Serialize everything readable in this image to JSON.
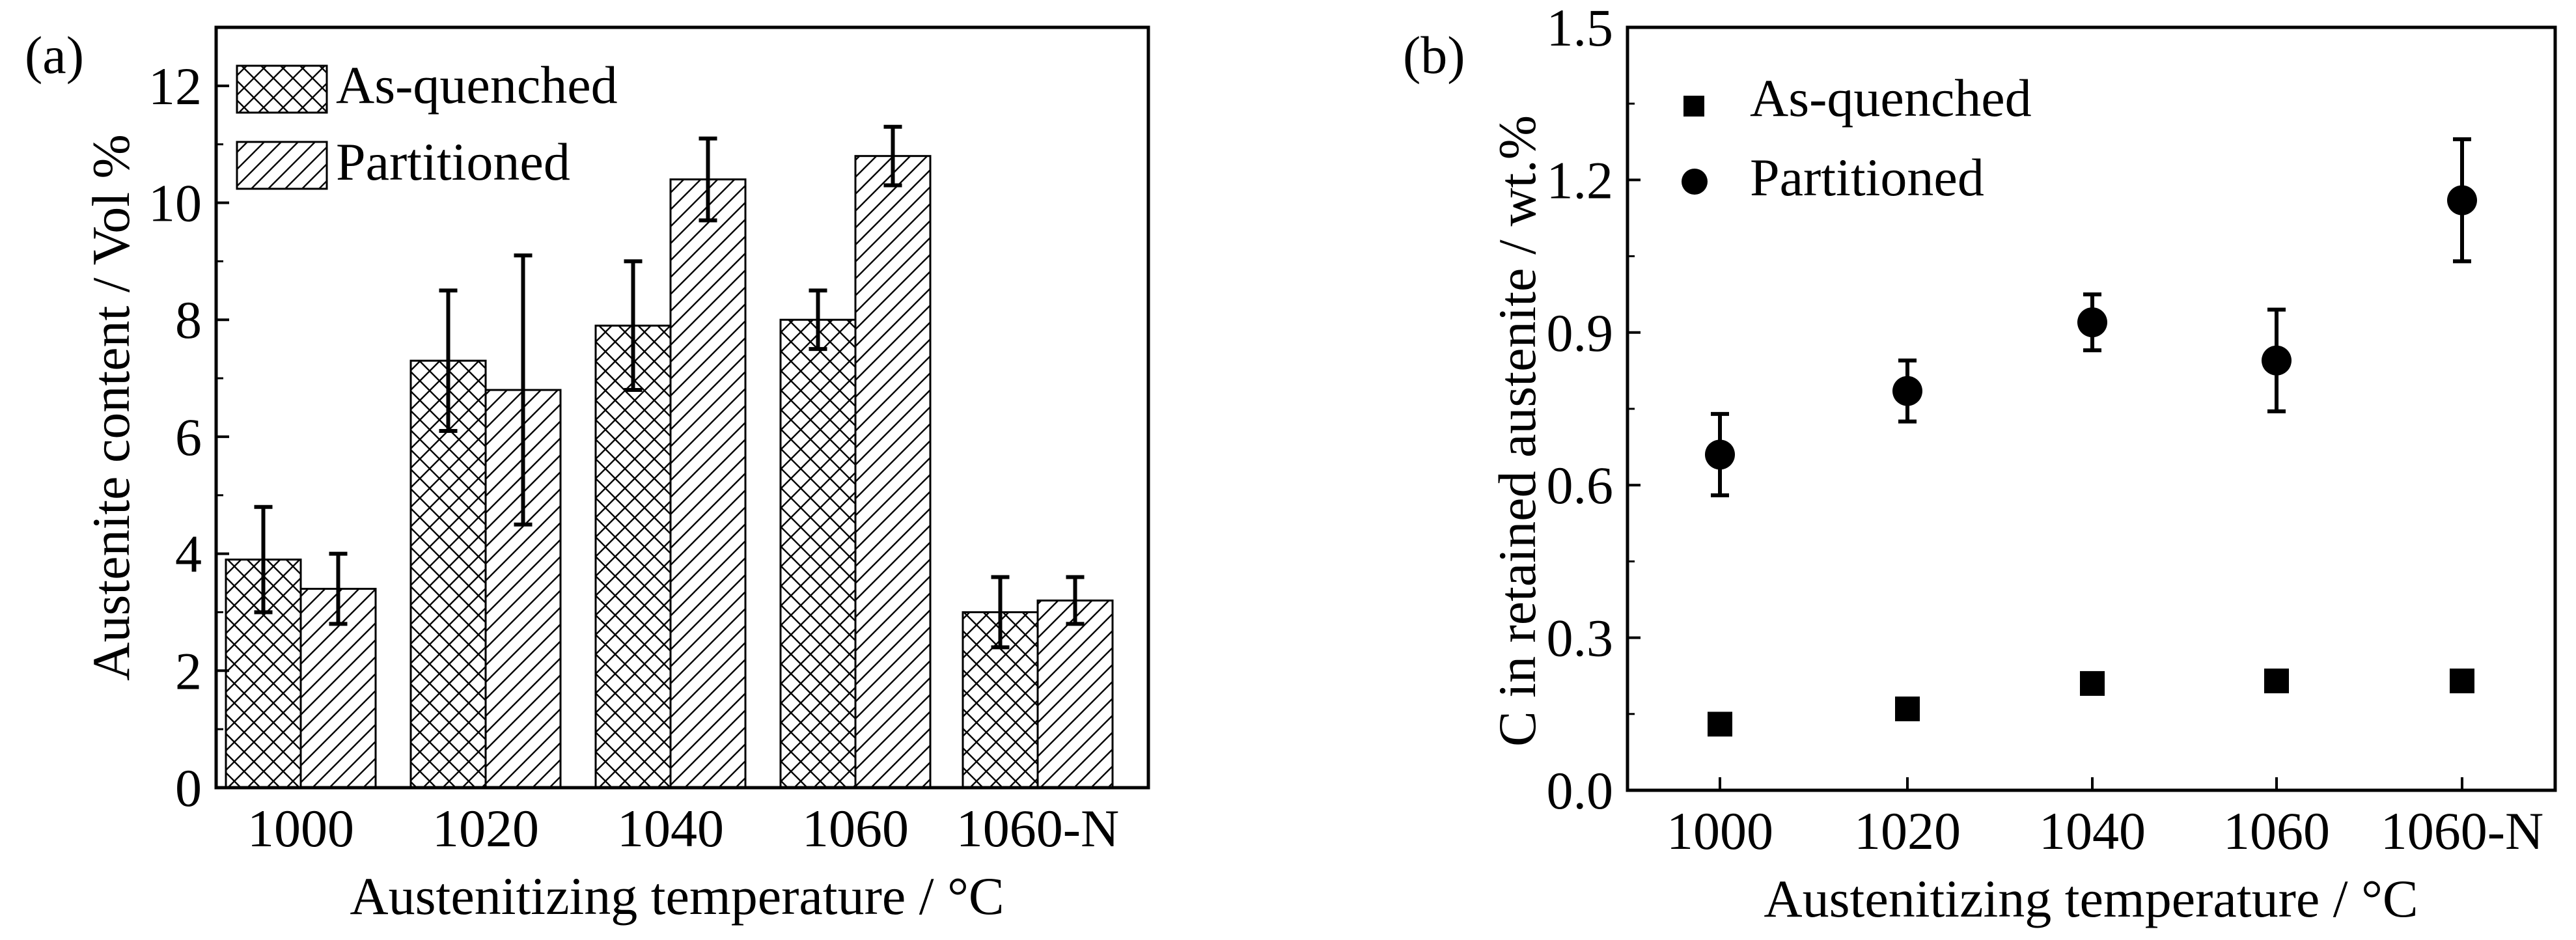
{
  "chart_data": [
    {
      "panel_label": "(a)",
      "type": "bar",
      "categories": [
        "1000",
        "1020",
        "1040",
        "1060",
        "1060-N"
      ],
      "series": [
        {
          "name": "As-quenched",
          "pattern": "crosshatch",
          "values": [
            3.9,
            7.3,
            7.9,
            8.0,
            3.0
          ],
          "errors": [
            0.9,
            1.2,
            1.1,
            0.5,
            0.6
          ]
        },
        {
          "name": "Partitioned",
          "pattern": "diagonal",
          "values": [
            3.4,
            6.8,
            10.4,
            10.8,
            3.2
          ],
          "errors": [
            0.6,
            2.3,
            0.7,
            0.5,
            0.4
          ]
        }
      ],
      "xlabel": "Austenitizing temperature / °C",
      "ylabel": "Austenite content / Vol %",
      "ylim": [
        0,
        13
      ],
      "yticks": [
        0,
        2,
        4,
        6,
        8,
        10,
        12
      ],
      "legend": "top-left"
    },
    {
      "panel_label": "(b)",
      "type": "scatter",
      "categories": [
        "1000",
        "1020",
        "1040",
        "1060",
        "1060-N"
      ],
      "series": [
        {
          "name": "As-quenched",
          "marker": "square",
          "values": [
            0.13,
            0.16,
            0.21,
            0.215,
            0.215
          ],
          "errors": [
            0,
            0,
            0,
            0,
            0
          ]
        },
        {
          "name": "Partitioned",
          "marker": "circle",
          "values": [
            0.66,
            0.785,
            0.92,
            0.845,
            1.16
          ],
          "errors": [
            0.08,
            0.06,
            0.055,
            0.1,
            0.12
          ]
        }
      ],
      "xlabel": "Austenitizing temperature / °C",
      "ylabel": "C  in retained austenite / wt.%",
      "ylim": [
        0,
        1.5
      ],
      "yticks": [
        "0.0",
        "0.3",
        "0.6",
        "0.9",
        "1.2",
        "1.5"
      ],
      "legend": "top-left"
    }
  ]
}
